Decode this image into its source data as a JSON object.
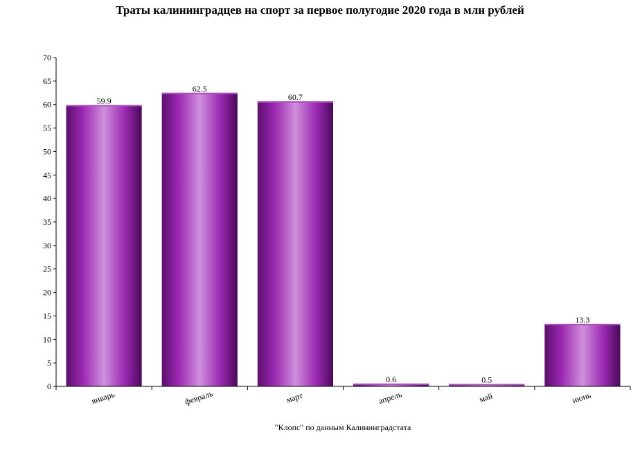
{
  "chart_data": {
    "type": "bar",
    "title": "Траты калининградцев на спорт за первое полугодие 2020 года в млн рублей",
    "source": "\"Клопс\" по данным Калининградстата",
    "categories": [
      "январь",
      "февраль",
      "март",
      "апрель",
      "май",
      "июнь"
    ],
    "values": [
      59.9,
      62.5,
      60.7,
      0.6,
      0.5,
      13.3
    ],
    "value_labels": [
      "59.9",
      "62.5",
      "60.7",
      "0.6",
      "0.5",
      "13.3"
    ],
    "ylim": [
      0,
      70
    ],
    "ytick_step": 5,
    "bar_color": "#8e1fa0",
    "xlabel": "",
    "ylabel": "",
    "grid": false
  }
}
